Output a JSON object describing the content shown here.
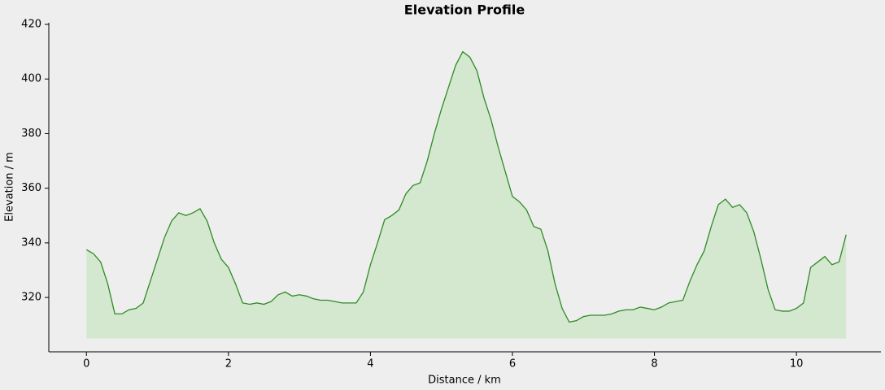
{
  "chart_data": {
    "type": "area",
    "title": "Elevation Profile",
    "x_label": "Distance / km",
    "y_label": "Elevation / m",
    "x": [
      0,
      0.1,
      0.2,
      0.3,
      0.4,
      0.5,
      0.6,
      0.7,
      0.8,
      0.9,
      1,
      1.1,
      1.2,
      1.3,
      1.4,
      1.5,
      1.6,
      1.7,
      1.8,
      1.9,
      2,
      2.1,
      2.2,
      2.3,
      2.4,
      2.5,
      2.6,
      2.7,
      2.8,
      2.9,
      3,
      3.1,
      3.2,
      3.3,
      3.4,
      3.5,
      3.6,
      3.7,
      3.8,
      3.9,
      4,
      4.1,
      4.2,
      4.3,
      4.4,
      4.5,
      4.6,
      4.7,
      4.8,
      4.9,
      5,
      5.1,
      5.2,
      5.3,
      5.4,
      5.5,
      5.6,
      5.7,
      5.8,
      5.9,
      6,
      6.1,
      6.2,
      6.3,
      6.4,
      6.5,
      6.6,
      6.7,
      6.8,
      6.9,
      7,
      7.1,
      7.2,
      7.3,
      7.4,
      7.5,
      7.6,
      7.7,
      7.8,
      7.9,
      8,
      8.1,
      8.2,
      8.3,
      8.4,
      8.5,
      8.6,
      8.7,
      8.8,
      8.9,
      9,
      9.1,
      9.2,
      9.3,
      9.4,
      9.5,
      9.6,
      9.7,
      9.8,
      9.9,
      10,
      10.1,
      10.2,
      10.3,
      10.4,
      10.5,
      10.6,
      10.7
    ],
    "values": [
      337.5,
      336,
      333,
      325,
      314,
      314,
      315.5,
      316,
      318,
      326,
      334,
      342,
      348,
      351,
      350,
      351,
      352.5,
      348,
      340,
      334,
      331,
      325,
      318,
      317.5,
      318,
      317.5,
      318.5,
      321,
      322,
      320.5,
      321,
      320.5,
      319.5,
      319,
      319,
      318.5,
      318,
      318,
      318,
      322,
      332,
      340,
      348.5,
      350,
      352,
      358,
      361,
      362,
      370,
      380,
      389,
      397,
      405,
      410,
      408,
      403,
      393,
      385,
      375,
      366,
      357,
      355,
      352,
      346,
      345,
      337,
      325,
      316,
      311,
      311.5,
      313,
      313.5,
      313.5,
      313.5,
      314,
      315,
      315.5,
      315.5,
      316.5,
      316,
      315.5,
      316.5,
      318,
      318.5,
      319,
      326,
      332,
      337,
      346,
      354,
      356,
      353,
      354,
      351,
      344,
      334,
      323,
      315.5,
      315,
      315,
      316,
      318,
      331,
      333,
      335,
      332,
      333,
      343
    ],
    "area_base": 305,
    "line_color": "#2e8b24",
    "fill_color": "#d4e8cf",
    "xlim": [
      -0.53,
      11.19
    ],
    "ylim": [
      300.1,
      420.6
    ],
    "xticks": [
      0,
      2,
      4,
      6,
      8,
      10
    ],
    "yticks": [
      320,
      340,
      360,
      380,
      400,
      420
    ]
  }
}
